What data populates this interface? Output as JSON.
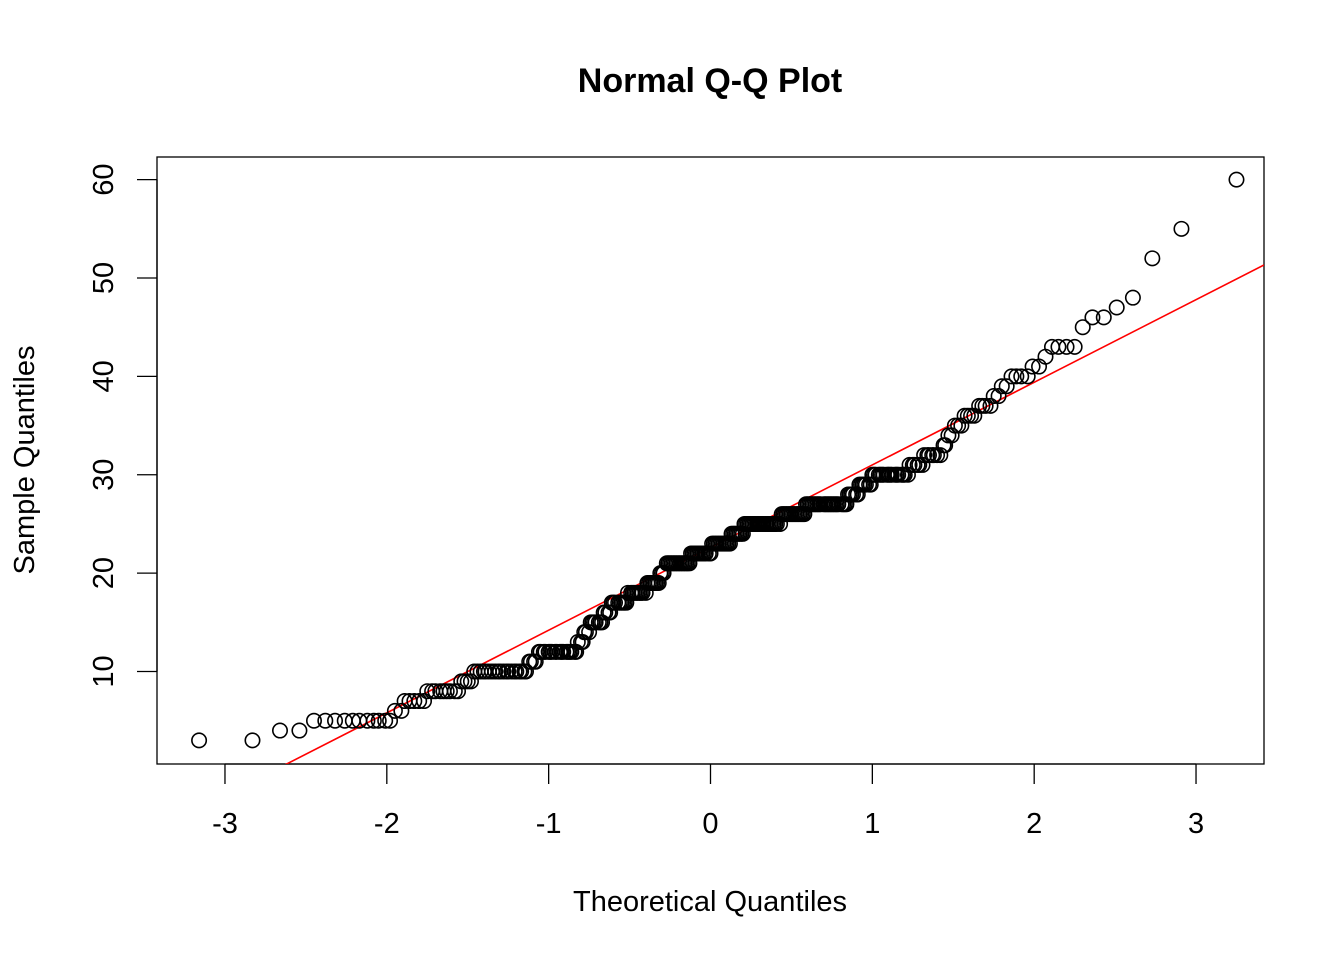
{
  "chart_data": {
    "type": "scatter",
    "title": "Normal Q-Q Plot",
    "xlabel": "Theoretical Quantiles",
    "ylabel": "Sample Quantiles",
    "xlim": [
      -3.42,
      3.42
    ],
    "ylim": [
      0.6,
      62.3
    ],
    "x_ticks": [
      -3,
      -2,
      -1,
      0,
      1,
      2,
      3
    ],
    "y_ticks": [
      10,
      20,
      30,
      40,
      50,
      60
    ],
    "grid": false,
    "legend": "none",
    "point_style": "open-circle",
    "point_color": "#000000",
    "reference_line": {
      "color": "#ff0000",
      "intercept": 22.6,
      "slope": 8.4
    },
    "points": [
      [
        -3.16,
        3
      ],
      [
        -2.83,
        3
      ],
      [
        -2.66,
        4
      ],
      [
        -2.54,
        4
      ],
      [
        -2.45,
        5
      ],
      [
        -2.38,
        5
      ],
      [
        -2.32,
        5
      ],
      [
        -2.26,
        5
      ],
      [
        -2.21,
        5
      ],
      [
        -2.17,
        5
      ],
      [
        -2.12,
        5
      ],
      [
        -2.08,
        5
      ],
      [
        -2.05,
        5
      ],
      [
        -2.01,
        5
      ],
      [
        -1.98,
        5
      ],
      [
        -1.95,
        6
      ],
      [
        -1.91,
        6
      ],
      [
        -1.89,
        7
      ],
      [
        -1.86,
        7
      ],
      [
        -1.83,
        7
      ],
      [
        -1.8,
        7
      ],
      [
        -1.77,
        7
      ],
      [
        -1.75,
        8
      ],
      [
        -1.72,
        8
      ],
      [
        -1.7,
        8
      ],
      [
        -1.67,
        8
      ],
      [
        -1.65,
        8
      ],
      [
        -1.63,
        8
      ],
      [
        -1.61,
        8
      ],
      [
        -1.58,
        8
      ],
      [
        -1.56,
        8
      ],
      [
        -1.54,
        9
      ],
      [
        -1.52,
        9
      ],
      [
        -1.5,
        9
      ],
      [
        -1.48,
        9
      ],
      [
        -1.46,
        10
      ],
      [
        -1.44,
        10
      ],
      [
        -1.42,
        10
      ],
      [
        -1.4,
        10
      ],
      [
        -1.39,
        10
      ],
      [
        -1.37,
        10
      ],
      [
        -1.35,
        10
      ],
      [
        -1.33,
        10
      ],
      [
        -1.31,
        10
      ],
      [
        -1.3,
        10
      ],
      [
        -1.28,
        10
      ],
      [
        -1.26,
        10
      ],
      [
        -1.25,
        10
      ],
      [
        -1.23,
        10
      ],
      [
        -1.21,
        10
      ],
      [
        -1.2,
        10
      ],
      [
        -1.18,
        10
      ],
      [
        -1.17,
        10
      ],
      [
        -1.15,
        10
      ],
      [
        -1.14,
        10
      ],
      [
        -1.12,
        11
      ],
      [
        -1.11,
        11
      ],
      [
        -1.09,
        11
      ],
      [
        -1.08,
        11
      ],
      [
        -1.06,
        12
      ],
      [
        -1.05,
        12
      ],
      [
        -1.03,
        12
      ],
      [
        -1.02,
        12
      ],
      [
        -1.0,
        12
      ],
      [
        -0.99,
        12
      ],
      [
        -0.98,
        12
      ],
      [
        -0.96,
        12
      ],
      [
        -0.95,
        12
      ],
      [
        -0.93,
        12
      ],
      [
        -0.92,
        12
      ],
      [
        -0.91,
        12
      ],
      [
        -0.89,
        12
      ],
      [
        -0.88,
        12
      ],
      [
        -0.87,
        12
      ],
      [
        -0.86,
        12
      ],
      [
        -0.84,
        12
      ],
      [
        -0.83,
        12
      ],
      [
        -0.82,
        13
      ],
      [
        -0.8,
        13
      ],
      [
        -0.79,
        13
      ],
      [
        -0.78,
        14
      ],
      [
        -0.77,
        14
      ],
      [
        -0.75,
        14
      ],
      [
        -0.74,
        15
      ],
      [
        -0.73,
        15
      ],
      [
        -0.72,
        15
      ],
      [
        -0.71,
        15
      ],
      [
        -0.69,
        15
      ],
      [
        -0.68,
        15
      ],
      [
        -0.67,
        15
      ],
      [
        -0.66,
        16
      ],
      [
        -0.65,
        16
      ],
      [
        -0.63,
        16
      ],
      [
        -0.62,
        16
      ],
      [
        -0.61,
        17
      ],
      [
        -0.6,
        17
      ],
      [
        -0.59,
        17
      ],
      [
        -0.57,
        17
      ],
      [
        -0.56,
        17
      ],
      [
        -0.55,
        17
      ],
      [
        -0.54,
        17
      ],
      [
        -0.53,
        17
      ],
      [
        -0.52,
        17
      ],
      [
        -0.51,
        18
      ],
      [
        -0.49,
        18
      ],
      [
        -0.48,
        18
      ],
      [
        -0.47,
        18
      ],
      [
        -0.46,
        18
      ],
      [
        -0.45,
        18
      ],
      [
        -0.44,
        18
      ],
      [
        -0.43,
        18
      ],
      [
        -0.42,
        18
      ],
      [
        -0.4,
        18
      ],
      [
        -0.39,
        19
      ],
      [
        -0.38,
        19
      ],
      [
        -0.37,
        19
      ],
      [
        -0.36,
        19
      ],
      [
        -0.35,
        19
      ],
      [
        -0.34,
        19
      ],
      [
        -0.33,
        19
      ],
      [
        -0.32,
        19
      ],
      [
        -0.31,
        20
      ],
      [
        -0.3,
        20
      ],
      [
        -0.29,
        20
      ],
      [
        -0.27,
        21
      ],
      [
        -0.26,
        21
      ],
      [
        -0.25,
        21
      ],
      [
        -0.24,
        21
      ],
      [
        -0.23,
        21
      ],
      [
        -0.22,
        21
      ],
      [
        -0.21,
        21
      ],
      [
        -0.2,
        21
      ],
      [
        -0.19,
        21
      ],
      [
        -0.18,
        21
      ],
      [
        -0.17,
        21
      ],
      [
        -0.16,
        21
      ],
      [
        -0.15,
        21
      ],
      [
        -0.14,
        21
      ],
      [
        -0.13,
        21
      ],
      [
        -0.12,
        22
      ],
      [
        -0.11,
        22
      ],
      [
        -0.1,
        22
      ],
      [
        -0.09,
        22
      ],
      [
        -0.08,
        22
      ],
      [
        -0.07,
        22
      ],
      [
        -0.06,
        22
      ],
      [
        -0.05,
        22
      ],
      [
        -0.04,
        22
      ],
      [
        -0.03,
        22
      ],
      [
        -0.01,
        22
      ],
      [
        0.0,
        22
      ],
      [
        0.01,
        23
      ],
      [
        0.02,
        23
      ],
      [
        0.03,
        23
      ],
      [
        0.04,
        23
      ],
      [
        0.05,
        23
      ],
      [
        0.06,
        23
      ],
      [
        0.07,
        23
      ],
      [
        0.08,
        23
      ],
      [
        0.09,
        23
      ],
      [
        0.1,
        23
      ],
      [
        0.11,
        23
      ],
      [
        0.12,
        23
      ],
      [
        0.13,
        24
      ],
      [
        0.14,
        24
      ],
      [
        0.15,
        24
      ],
      [
        0.16,
        24
      ],
      [
        0.17,
        24
      ],
      [
        0.18,
        24
      ],
      [
        0.19,
        24
      ],
      [
        0.2,
        24
      ],
      [
        0.21,
        25
      ],
      [
        0.22,
        25
      ],
      [
        0.23,
        25
      ],
      [
        0.24,
        25
      ],
      [
        0.25,
        25
      ],
      [
        0.26,
        25
      ],
      [
        0.27,
        25
      ],
      [
        0.28,
        25
      ],
      [
        0.29,
        25
      ],
      [
        0.3,
        25
      ],
      [
        0.31,
        25
      ],
      [
        0.32,
        25
      ],
      [
        0.33,
        25
      ],
      [
        0.34,
        25
      ],
      [
        0.35,
        25
      ],
      [
        0.36,
        25
      ],
      [
        0.37,
        25
      ],
      [
        0.38,
        25
      ],
      [
        0.39,
        25
      ],
      [
        0.4,
        25
      ],
      [
        0.41,
        25
      ],
      [
        0.43,
        25
      ],
      [
        0.44,
        26
      ],
      [
        0.45,
        26
      ],
      [
        0.46,
        26
      ],
      [
        0.47,
        26
      ],
      [
        0.48,
        26
      ],
      [
        0.49,
        26
      ],
      [
        0.5,
        26
      ],
      [
        0.51,
        26
      ],
      [
        0.52,
        26
      ],
      [
        0.53,
        26
      ],
      [
        0.54,
        26
      ],
      [
        0.55,
        26
      ],
      [
        0.56,
        26
      ],
      [
        0.57,
        26
      ],
      [
        0.58,
        26
      ],
      [
        0.59,
        27
      ],
      [
        0.6,
        27
      ],
      [
        0.61,
        27
      ],
      [
        0.62,
        27
      ],
      [
        0.63,
        27
      ],
      [
        0.64,
        27
      ],
      [
        0.65,
        27
      ],
      [
        0.66,
        27
      ],
      [
        0.67,
        27
      ],
      [
        0.68,
        27
      ],
      [
        0.7,
        27
      ],
      [
        0.71,
        27
      ],
      [
        0.72,
        27
      ],
      [
        0.73,
        27
      ],
      [
        0.74,
        27
      ],
      [
        0.75,
        27
      ],
      [
        0.76,
        27
      ],
      [
        0.77,
        27
      ],
      [
        0.78,
        27
      ],
      [
        0.79,
        27
      ],
      [
        0.81,
        27
      ],
      [
        0.82,
        27
      ],
      [
        0.83,
        27
      ],
      [
        0.84,
        27
      ],
      [
        0.85,
        28
      ],
      [
        0.86,
        28
      ],
      [
        0.87,
        28
      ],
      [
        0.88,
        28
      ],
      [
        0.9,
        28
      ],
      [
        0.91,
        28
      ],
      [
        0.92,
        29
      ],
      [
        0.93,
        29
      ],
      [
        0.94,
        29
      ],
      [
        0.95,
        29
      ],
      [
        0.96,
        29
      ],
      [
        0.98,
        29
      ],
      [
        0.99,
        29
      ],
      [
        1.0,
        30
      ],
      [
        1.01,
        30
      ],
      [
        1.02,
        30
      ],
      [
        1.04,
        30
      ],
      [
        1.05,
        30
      ],
      [
        1.06,
        30
      ],
      [
        1.07,
        30
      ],
      [
        1.09,
        30
      ],
      [
        1.1,
        30
      ],
      [
        1.11,
        30
      ],
      [
        1.12,
        30
      ],
      [
        1.14,
        30
      ],
      [
        1.15,
        30
      ],
      [
        1.16,
        30
      ],
      [
        1.18,
        30
      ],
      [
        1.19,
        30
      ],
      [
        1.2,
        30
      ],
      [
        1.22,
        30
      ],
      [
        1.23,
        31
      ],
      [
        1.25,
        31
      ],
      [
        1.26,
        31
      ],
      [
        1.28,
        31
      ],
      [
        1.29,
        31
      ],
      [
        1.31,
        31
      ],
      [
        1.32,
        32
      ],
      [
        1.34,
        32
      ],
      [
        1.35,
        32
      ],
      [
        1.37,
        32
      ],
      [
        1.38,
        32
      ],
      [
        1.4,
        32
      ],
      [
        1.42,
        32
      ],
      [
        1.44,
        33
      ],
      [
        1.45,
        33
      ],
      [
        1.47,
        34
      ],
      [
        1.49,
        34
      ],
      [
        1.51,
        35
      ],
      [
        1.53,
        35
      ],
      [
        1.55,
        35
      ],
      [
        1.57,
        36
      ],
      [
        1.59,
        36
      ],
      [
        1.61,
        36
      ],
      [
        1.63,
        36
      ],
      [
        1.66,
        37
      ],
      [
        1.68,
        37
      ],
      [
        1.7,
        37
      ],
      [
        1.73,
        37
      ],
      [
        1.75,
        38
      ],
      [
        1.78,
        38
      ],
      [
        1.8,
        39
      ],
      [
        1.83,
        39
      ],
      [
        1.86,
        40
      ],
      [
        1.89,
        40
      ],
      [
        1.92,
        40
      ],
      [
        1.96,
        40
      ],
      [
        1.99,
        41
      ],
      [
        2.03,
        41
      ],
      [
        2.07,
        42
      ],
      [
        2.11,
        43
      ],
      [
        2.15,
        43
      ],
      [
        2.2,
        43
      ],
      [
        2.25,
        43
      ],
      [
        2.3,
        45
      ],
      [
        2.36,
        46
      ],
      [
        2.43,
        46
      ],
      [
        2.51,
        47
      ],
      [
        2.61,
        48
      ],
      [
        2.73,
        52
      ],
      [
        2.91,
        55
      ],
      [
        3.25,
        60
      ]
    ]
  }
}
